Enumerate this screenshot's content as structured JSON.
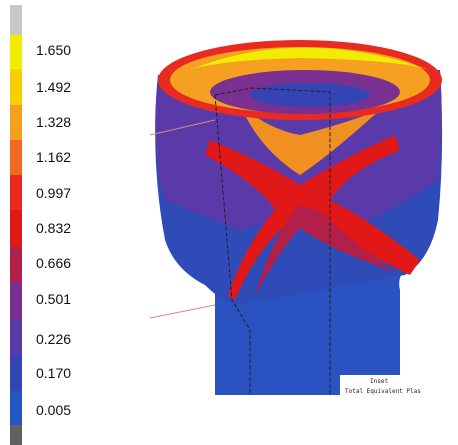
{
  "legend": {
    "levels": [
      "1.650",
      "1.492",
      "1.328",
      "1.162",
      "0.997",
      "0.832",
      "0.666",
      "0.501",
      "0.226",
      "0.170",
      "0.005"
    ]
  },
  "viewport": {
    "inset_label": "Inset",
    "result_label": "Total Equivalent Plas"
  }
}
